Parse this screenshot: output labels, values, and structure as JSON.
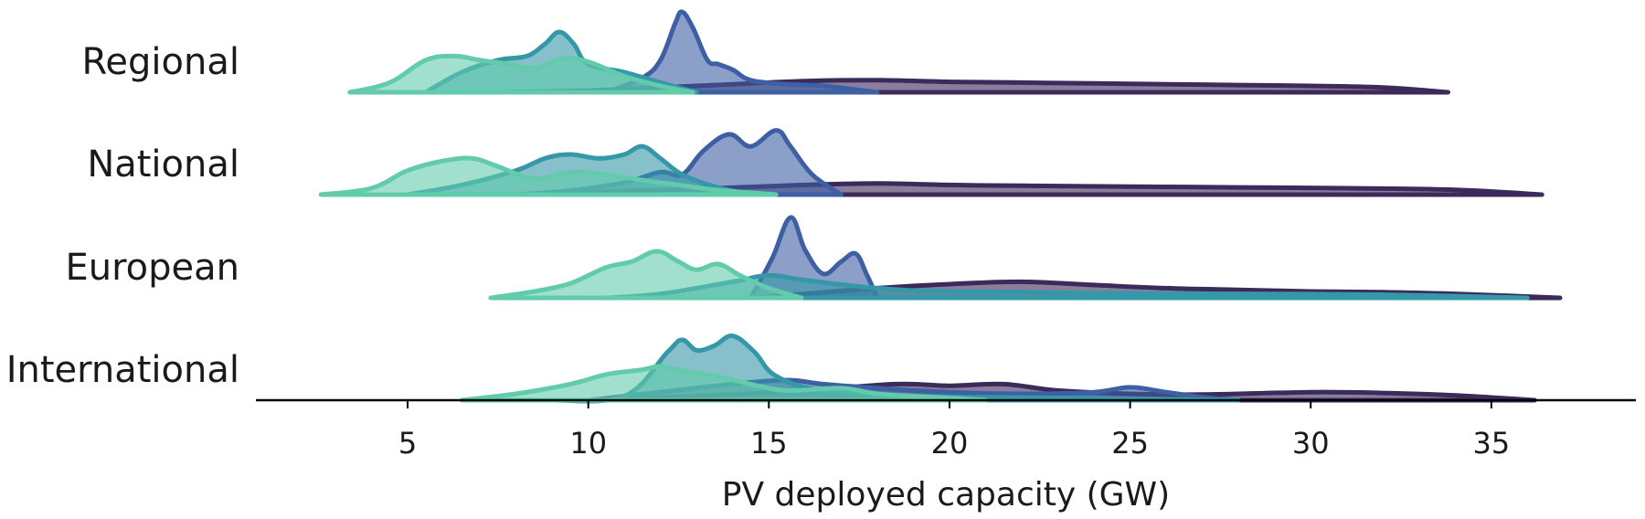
{
  "chart_data": {
    "type": "area",
    "subtype": "ridgeline",
    "title": "",
    "xlabel": "PV deployed capacity (GW)",
    "ylabel": "",
    "xlim": [
      0.8,
      39.0
    ],
    "xticks": [
      5,
      10,
      15,
      20,
      25,
      30,
      35
    ],
    "grid": false,
    "legend": "none",
    "groups": [
      "Regional",
      "National",
      "European",
      "International"
    ],
    "series_colors": [
      "#3b2a5a",
      "#3d5fa3",
      "#3598a8",
      "#61cbab"
    ],
    "ridges": [
      {
        "group": "Regional",
        "series": [
          {
            "color": "#3b2a5a",
            "range": [
              7.5,
              33.8
            ],
            "density": [
              [
                7.5,
                0
              ],
              [
                10,
                0.02
              ],
              [
                12,
                0.06
              ],
              [
                14,
                0.1
              ],
              [
                16,
                0.14
              ],
              [
                18,
                0.15
              ],
              [
                20,
                0.13
              ],
              [
                22,
                0.12
              ],
              [
                24,
                0.11
              ],
              [
                26,
                0.1
              ],
              [
                28,
                0.09
              ],
              [
                30,
                0.08
              ],
              [
                32,
                0.06
              ],
              [
                33.8,
                0
              ]
            ]
          },
          {
            "color": "#3d5fa3",
            "range": [
              10.5,
              18.0
            ],
            "density": [
              [
                10.5,
                0
              ],
              [
                11.5,
                0.18
              ],
              [
                12,
                0.4
              ],
              [
                12.4,
                0.85
              ],
              [
                12.6,
                1.0
              ],
              [
                12.9,
                0.8
              ],
              [
                13.3,
                0.4
              ],
              [
                13.6,
                0.35
              ],
              [
                14,
                0.28
              ],
              [
                14.5,
                0.15
              ],
              [
                15.5,
                0.1
              ],
              [
                16.5,
                0.08
              ],
              [
                18,
                0
              ]
            ]
          },
          {
            "color": "#3598a8",
            "range": [
              5.5,
              13.0
            ],
            "density": [
              [
                5.5,
                0
              ],
              [
                6.5,
                0.25
              ],
              [
                7.5,
                0.4
              ],
              [
                8.3,
                0.45
              ],
              [
                8.8,
                0.6
              ],
              [
                9.2,
                0.75
              ],
              [
                9.6,
                0.6
              ],
              [
                10,
                0.35
              ],
              [
                11,
                0.25
              ],
              [
                12,
                0.12
              ],
              [
                13,
                0
              ]
            ]
          },
          {
            "color": "#61cbab",
            "range": [
              3.4,
              12.9
            ],
            "density": [
              [
                3.4,
                0
              ],
              [
                4.5,
                0.12
              ],
              [
                5.5,
                0.4
              ],
              [
                6.3,
                0.45
              ],
              [
                7,
                0.4
              ],
              [
                7.8,
                0.35
              ],
              [
                8.5,
                0.3
              ],
              [
                9.3,
                0.42
              ],
              [
                10,
                0.38
              ],
              [
                11,
                0.2
              ],
              [
                12,
                0.08
              ],
              [
                12.9,
                0
              ]
            ]
          }
        ]
      },
      {
        "group": "National",
        "series": [
          {
            "color": "#3b2a5a",
            "range": [
              8.0,
              36.4
            ],
            "density": [
              [
                8,
                0
              ],
              [
                10,
                0.03
              ],
              [
                13,
                0.07
              ],
              [
                16,
                0.12
              ],
              [
                18,
                0.14
              ],
              [
                20,
                0.12
              ],
              [
                22,
                0.11
              ],
              [
                25,
                0.1
              ],
              [
                28,
                0.09
              ],
              [
                31,
                0.08
              ],
              [
                34,
                0.06
              ],
              [
                36.4,
                0
              ]
            ]
          },
          {
            "color": "#3d5fa3",
            "range": [
              8.0,
              17.0
            ],
            "density": [
              [
                8,
                0
              ],
              [
                9.5,
                0.05
              ],
              [
                11,
                0.15
              ],
              [
                12,
                0.28
              ],
              [
                12.6,
                0.25
              ],
              [
                13.2,
                0.55
              ],
              [
                13.9,
                0.75
              ],
              [
                14.5,
                0.6
              ],
              [
                15.2,
                0.8
              ],
              [
                15.6,
                0.6
              ],
              [
                16.2,
                0.25
              ],
              [
                17,
                0
              ]
            ]
          },
          {
            "color": "#3598a8",
            "range": [
              5.0,
              14.5
            ],
            "density": [
              [
                5,
                0
              ],
              [
                6.5,
                0.12
              ],
              [
                8,
                0.3
              ],
              [
                8.8,
                0.45
              ],
              [
                9.5,
                0.5
              ],
              [
                10.3,
                0.45
              ],
              [
                11,
                0.5
              ],
              [
                11.5,
                0.6
              ],
              [
                12,
                0.45
              ],
              [
                12.6,
                0.25
              ],
              [
                13.5,
                0.1
              ],
              [
                14.5,
                0
              ]
            ]
          },
          {
            "color": "#61cbab",
            "range": [
              2.6,
              15.2
            ],
            "density": [
              [
                2.6,
                0
              ],
              [
                4,
                0.08
              ],
              [
                5,
                0.3
              ],
              [
                6,
                0.42
              ],
              [
                6.8,
                0.45
              ],
              [
                7.5,
                0.35
              ],
              [
                8.5,
                0.2
              ],
              [
                9.5,
                0.28
              ],
              [
                10.5,
                0.25
              ],
              [
                11.5,
                0.18
              ],
              [
                12.5,
                0.12
              ],
              [
                13.5,
                0.06
              ],
              [
                15.2,
                0
              ]
            ]
          }
        ]
      },
      {
        "group": "European",
        "series": [
          {
            "color": "#3b2a5a",
            "range": [
              14.5,
              36.9
            ],
            "density": [
              [
                14.5,
                0
              ],
              [
                16,
                0.05
              ],
              [
                18,
                0.12
              ],
              [
                20,
                0.17
              ],
              [
                22,
                0.2
              ],
              [
                24,
                0.16
              ],
              [
                26,
                0.12
              ],
              [
                28,
                0.1
              ],
              [
                30,
                0.08
              ],
              [
                32,
                0.07
              ],
              [
                34,
                0.05
              ],
              [
                36.9,
                0
              ]
            ]
          },
          {
            "color": "#3d5fa3",
            "range": [
              14.5,
              18.0
            ],
            "density": [
              [
                14.5,
                0
              ],
              [
                15.1,
                0.5
              ],
              [
                15.6,
                1.0
              ],
              [
                16,
                0.6
              ],
              [
                16.5,
                0.3
              ],
              [
                17,
                0.45
              ],
              [
                17.4,
                0.55
              ],
              [
                17.7,
                0.3
              ],
              [
                18,
                0
              ]
            ]
          },
          {
            "color": "#3598a8",
            "range": [
              10.5,
              36.0
            ],
            "density": [
              [
                10.5,
                0
              ],
              [
                12,
                0.05
              ],
              [
                14,
                0.2
              ],
              [
                15,
                0.28
              ],
              [
                16,
                0.22
              ],
              [
                18,
                0.12
              ],
              [
                20,
                0.08
              ],
              [
                24,
                0.06
              ],
              [
                28,
                0.05
              ],
              [
                32,
                0.04
              ],
              [
                36,
                0
              ]
            ]
          },
          {
            "color": "#61cbab",
            "range": [
              7.3,
              15.9
            ],
            "density": [
              [
                7.3,
                0
              ],
              [
                8.5,
                0.08
              ],
              [
                9.5,
                0.18
              ],
              [
                10.5,
                0.38
              ],
              [
                11.2,
                0.45
              ],
              [
                11.9,
                0.58
              ],
              [
                12.5,
                0.45
              ],
              [
                13,
                0.35
              ],
              [
                13.6,
                0.42
              ],
              [
                14.2,
                0.28
              ],
              [
                15,
                0.12
              ],
              [
                15.9,
                0
              ]
            ]
          }
        ]
      },
      {
        "group": "International",
        "series": [
          {
            "color": "#3b2a5a",
            "range": [
              10.0,
              36.2
            ],
            "density": [
              [
                10,
                0
              ],
              [
                13,
                0.05
              ],
              [
                16,
                0.12
              ],
              [
                18.5,
                0.2
              ],
              [
                20,
                0.18
              ],
              [
                21.5,
                0.2
              ],
              [
                23,
                0.12
              ],
              [
                25,
                0.08
              ],
              [
                27,
                0.07
              ],
              [
                30,
                0.1
              ],
              [
                32,
                0.09
              ],
              [
                34,
                0.06
              ],
              [
                36.2,
                0
              ]
            ]
          },
          {
            "color": "#3d5fa3",
            "range": [
              10.0,
              28.0
            ],
            "density": [
              [
                10,
                0
              ],
              [
                12,
                0.1
              ],
              [
                14,
                0.2
              ],
              [
                15.5,
                0.25
              ],
              [
                16.5,
                0.2
              ],
              [
                18,
                0.15
              ],
              [
                20,
                0.1
              ],
              [
                22,
                0.08
              ],
              [
                24,
                0.1
              ],
              [
                25,
                0.16
              ],
              [
                26,
                0.1
              ],
              [
                27,
                0.04
              ],
              [
                28,
                0
              ]
            ]
          },
          {
            "color": "#3598a8",
            "range": [
              9.0,
              28.0
            ],
            "density": [
              [
                9,
                0
              ],
              [
                11,
                0.05
              ],
              [
                12.2,
                0.6
              ],
              [
                12.6,
                0.75
              ],
              [
                13,
                0.62
              ],
              [
                13.5,
                0.68
              ],
              [
                14,
                0.8
              ],
              [
                14.6,
                0.6
              ],
              [
                15.2,
                0.3
              ],
              [
                16.5,
                0.12
              ],
              [
                19,
                0.05
              ],
              [
                23,
                0.03
              ],
              [
                28,
                0
              ]
            ]
          },
          {
            "color": "#61cbab",
            "range": [
              6.5,
              21.0
            ],
            "density": [
              [
                6.5,
                0
              ],
              [
                8,
                0.08
              ],
              [
                9.5,
                0.2
              ],
              [
                10.5,
                0.32
              ],
              [
                11.5,
                0.38
              ],
              [
                12,
                0.42
              ],
              [
                12.8,
                0.35
              ],
              [
                13.5,
                0.3
              ],
              [
                14.5,
                0.2
              ],
              [
                15.5,
                0.12
              ],
              [
                17,
                0.15
              ],
              [
                18,
                0.08
              ],
              [
                19.5,
                0.04
              ],
              [
                21,
                0
              ]
            ]
          }
        ]
      }
    ]
  }
}
